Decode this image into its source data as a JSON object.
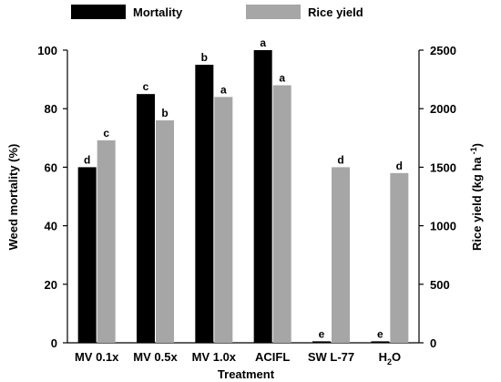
{
  "chart_data": {
    "type": "bar",
    "xlabel": "Treatment",
    "categories": [
      {
        "main": "MV 0.1x",
        "sub": ""
      },
      {
        "main": "MV 0.5x",
        "sub": ""
      },
      {
        "main": "MV 1.0x",
        "sub": ""
      },
      {
        "main": "ACIFL",
        "sub": ""
      },
      {
        "main": "SW L-77",
        "sub": ""
      },
      {
        "main": "H",
        "sub": "2",
        "tail": "O"
      }
    ],
    "category_labels": [
      "MV 0.1x",
      "MV 0.5x",
      "MV 1.0x",
      "ACIFL",
      "SW L-77",
      "H2O"
    ],
    "y_left": {
      "label": "Weed mortality (%)",
      "lim": [
        0,
        100
      ],
      "ticks": [
        0,
        20,
        40,
        60,
        80,
        100
      ]
    },
    "y_right": {
      "label_main": "Rice yield (kg ha",
      "label_sup": "-1",
      "label_tail": ")",
      "lim": [
        0,
        2500
      ],
      "ticks": [
        0,
        500,
        1000,
        1500,
        2000,
        2500
      ]
    },
    "legend_position": "top",
    "series": [
      {
        "name": "Mortality",
        "axis": "left",
        "color": "#000000",
        "values": [
          60,
          85,
          95,
          100,
          0.5,
          0.5
        ],
        "letters": [
          "d",
          "c",
          "b",
          "a",
          "e",
          "e"
        ]
      },
      {
        "name": "Rice yield",
        "axis": "right",
        "color": "#a6a6a6",
        "values": [
          1730,
          1900,
          2100,
          2200,
          1500,
          1450
        ],
        "letters": [
          "c",
          "b",
          "a",
          "a",
          "d",
          "d"
        ]
      }
    ]
  }
}
